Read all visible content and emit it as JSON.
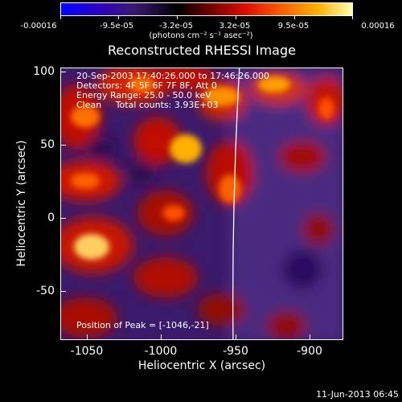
{
  "colorbar": {
    "tick_labels": [
      "-0.00016",
      "-9.5e-05",
      "-3.2e-05",
      "3.2e-05",
      "9.5e-05",
      "0.00016"
    ],
    "units": "(photons cm⁻² s⁻¹ asec⁻²)"
  },
  "title": "Reconstructed RHESSI Image",
  "info": {
    "time": "20-Sep-2003 17:40:26.000 to 17:46:26.000",
    "detectors": "Detectors: 4F 5F 6F 7F 8F, Att 0",
    "energy": "Energy Range: 25.0 - 50.0 keV",
    "clean": "Clean     Total counts: 3.93E+03",
    "peak": "Position of Peak = [-1046,-21]"
  },
  "axes": {
    "xlabel": "Heliocentric X (arcsec)",
    "ylabel": "Heliocentric Y (arcsec)",
    "xticks": [
      "-1050",
      "-1000",
      "-950",
      "-900"
    ],
    "yticks": [
      "100",
      "50",
      "0",
      "-50"
    ]
  },
  "footer_date": "11-Jun-2013 06:45"
}
